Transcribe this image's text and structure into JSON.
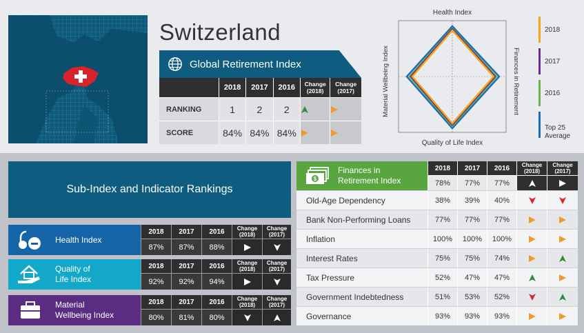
{
  "country": "Switzerland",
  "gri": {
    "title": "Global Retirement Index",
    "headers": [
      "2018",
      "2017",
      "2016",
      "Change\n(2018)",
      "Change\n(2017)"
    ],
    "rows": [
      {
        "label": "RANKING",
        "values": [
          "1",
          "2",
          "2"
        ],
        "change2018": "up",
        "change2017": "right"
      },
      {
        "label": "SCORE",
        "values": [
          "84%",
          "84%",
          "84%"
        ],
        "change2018": "right",
        "change2017": "right"
      }
    ]
  },
  "radar": {
    "axes": {
      "top": "Health Index",
      "right": "Finances in Retirement",
      "bottom": "Quality of Life Index",
      "left": "Material Wellbeing Index"
    },
    "legend": [
      {
        "label": "2018",
        "color": "#f3a51c"
      },
      {
        "label": "2017",
        "color": "#6a2c8e"
      },
      {
        "label": "2016",
        "color": "#6ab04c"
      },
      {
        "label": "Top 25\nAverage",
        "color": "#1d6db2"
      }
    ]
  },
  "sub": {
    "title": "Sub-Index and Indicator Rankings",
    "col_headers": [
      "2018",
      "2017",
      "2016",
      "Change\n(2018)",
      "Change\n(2017)"
    ],
    "indices": [
      {
        "name": "Health Index",
        "color": "#1565a8",
        "icon": "health-index-icon",
        "values": [
          "87%",
          "87%",
          "88%"
        ],
        "change2018": "right",
        "change2017": "down"
      },
      {
        "name": "Quality of\nLife Index",
        "color": "#13a8c9",
        "icon": "house-hand-icon",
        "values": [
          "92%",
          "92%",
          "94%"
        ],
        "change2018": "right",
        "change2017": "down"
      },
      {
        "name": "Material\nWellbeing Index",
        "color": "#5a2d82",
        "icon": "briefcase-icon",
        "values": [
          "80%",
          "81%",
          "80%"
        ],
        "change2018": "down",
        "change2017": "up"
      }
    ]
  },
  "finances": {
    "name": "Finances in\nRetirement Index",
    "icon": "money-icon",
    "headers": [
      "2018",
      "2017",
      "2016",
      "Change\n(2018)",
      "Change\n(2017)"
    ],
    "values": [
      "78%",
      "77%",
      "77%"
    ],
    "change2018": "up",
    "change2017": "right",
    "indicators": [
      {
        "label": "Old-Age Dependency",
        "values": [
          "38%",
          "39%",
          "40%"
        ],
        "c18": "down",
        "c17": "down"
      },
      {
        "label": "Bank Non-Performing Loans",
        "values": [
          "77%",
          "77%",
          "77%"
        ],
        "c18": "right",
        "c17": "right"
      },
      {
        "label": "Inflation",
        "values": [
          "100%",
          "100%",
          "100%"
        ],
        "c18": "right",
        "c17": "right"
      },
      {
        "label": "Interest Rates",
        "values": [
          "75%",
          "75%",
          "74%"
        ],
        "c18": "right",
        "c17": "up"
      },
      {
        "label": "Tax Pressure",
        "values": [
          "52%",
          "47%",
          "47%"
        ],
        "c18": "up",
        "c17": "right"
      },
      {
        "label": "Government Indebtedness",
        "values": [
          "51%",
          "53%",
          "52%"
        ],
        "c18": "down",
        "c17": "up"
      },
      {
        "label": "Governance",
        "values": [
          "93%",
          "93%",
          "93%"
        ],
        "c18": "right",
        "c17": "right"
      }
    ]
  },
  "arrow_colors": {
    "up": "#2e8b3a",
    "right": "#f2992e",
    "down": "#d7262b",
    "white": "#ffffff"
  }
}
